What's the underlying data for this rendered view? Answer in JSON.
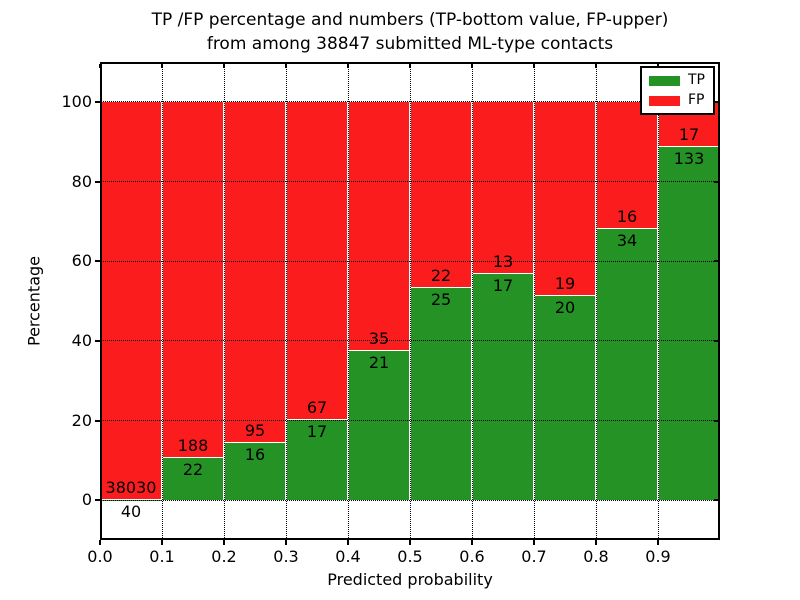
{
  "figure": {
    "title_line1": "TP /FP percentage and numbers (TP-bottom value, FP-upper)",
    "title_line2": "from among 38847 submitted ML-type contacts"
  },
  "chart_data": {
    "type": "bar",
    "stacked": true,
    "title": "TP /FP percentage and numbers (TP-bottom value, FP-upper) from among 38847 submitted ML-type contacts",
    "xlabel": "Predicted probability",
    "ylabel": "Percentage",
    "total_contacts": 38847,
    "xlim": [
      0.0,
      1.0
    ],
    "ylim": [
      -10,
      110
    ],
    "bin_width": 0.1,
    "x_tick_values": [
      0.0,
      0.1,
      0.2,
      0.3,
      0.4,
      0.5,
      0.6,
      0.7,
      0.8,
      0.9
    ],
    "x_tick_labels": [
      "0.0",
      "0.1",
      "0.2",
      "0.3",
      "0.4",
      "0.5",
      "0.6",
      "0.7",
      "0.8",
      "0.9"
    ],
    "y_tick_values": [
      0,
      20,
      40,
      60,
      80,
      100
    ],
    "y_tick_labels": [
      "0",
      "20",
      "40",
      "60",
      "80",
      "100"
    ],
    "grid": {
      "style": "dotted",
      "color": "#000000"
    },
    "colors": {
      "tp": "#259225",
      "fp": "#fb1d1d",
      "bar_edge": "#ffffff"
    },
    "legend": {
      "position": "upper right",
      "entries": [
        {
          "label": "TP",
          "color": "#259225"
        },
        {
          "label": "FP",
          "color": "#fb1d1d"
        }
      ]
    },
    "bars": [
      {
        "x_start": 0.0,
        "x_end": 0.1,
        "tp_count": 40,
        "fp_count": 38030,
        "tp_pct": 0.11,
        "fp_pct": 99.89
      },
      {
        "x_start": 0.1,
        "x_end": 0.2,
        "tp_count": 22,
        "fp_count": 188,
        "tp_pct": 10.48,
        "fp_pct": 89.52
      },
      {
        "x_start": 0.2,
        "x_end": 0.3,
        "tp_count": 16,
        "fp_count": 95,
        "tp_pct": 14.41,
        "fp_pct": 85.59
      },
      {
        "x_start": 0.3,
        "x_end": 0.4,
        "tp_count": 17,
        "fp_count": 67,
        "tp_pct": 20.24,
        "fp_pct": 79.76
      },
      {
        "x_start": 0.4,
        "x_end": 0.5,
        "tp_count": 21,
        "fp_count": 35,
        "tp_pct": 37.5,
        "fp_pct": 62.5
      },
      {
        "x_start": 0.5,
        "x_end": 0.6,
        "tp_count": 25,
        "fp_count": 22,
        "tp_pct": 53.19,
        "fp_pct": 46.81
      },
      {
        "x_start": 0.6,
        "x_end": 0.7,
        "tp_count": 17,
        "fp_count": 13,
        "tp_pct": 56.67,
        "fp_pct": 43.33
      },
      {
        "x_start": 0.7,
        "x_end": 0.8,
        "tp_count": 20,
        "fp_count": 19,
        "tp_pct": 51.28,
        "fp_pct": 48.72
      },
      {
        "x_start": 0.8,
        "x_end": 0.9,
        "tp_count": 34,
        "fp_count": 16,
        "tp_pct": 68.0,
        "fp_pct": 32.0
      },
      {
        "x_start": 0.9,
        "x_end": 1.0,
        "tp_count": 133,
        "fp_count": 17,
        "tp_pct": 88.67,
        "fp_pct": 11.33
      }
    ]
  }
}
